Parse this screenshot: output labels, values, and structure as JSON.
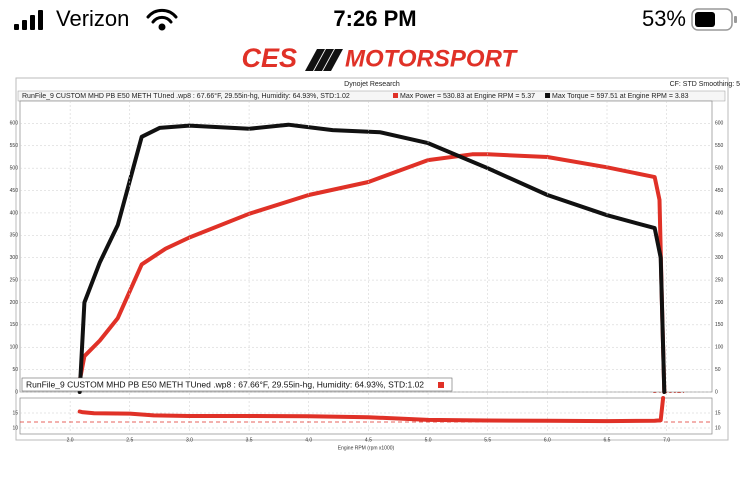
{
  "status_bar": {
    "carrier": "Verizon",
    "time": "7:26 PM",
    "battery": "53%"
  },
  "logo": {
    "left": "CES",
    "right": "MOTORSPORT"
  },
  "header": {
    "title": "Dynojet Research",
    "settings": "CF: STD Smoothing: 5",
    "run_info": "RunFile_9 CUSTOM MHD PB E50 METH TUned .wp8 : 67.66°F, 29.55in-hg, Humidity: 64.93%, STD:1.02"
  },
  "brand": "DYNOJET",
  "chart_data": [
    {
      "type": "line",
      "xlim": [
        1.58,
        7.38
      ],
      "ylim": [
        0,
        650
      ],
      "yticks": [
        0,
        50,
        100,
        150,
        200,
        250,
        300,
        350,
        400,
        450,
        500,
        550,
        600
      ],
      "grid": true,
      "legend": "RunFile_9 CUSTOM MHD PB E50 METH TUned .wp8 : 67.66°F, 29.55in-hg, Humidity: 64.93%, STD:1.02",
      "series": [
        {
          "name": "Max Power = 530.83 at Engine RPM = 5.37",
          "color": "#e03127",
          "x": [
            2.08,
            2.12,
            2.25,
            2.4,
            2.6,
            2.8,
            3.0,
            3.5,
            4.0,
            4.5,
            5.0,
            5.37,
            5.5,
            6.0,
            6.5,
            6.9,
            6.94,
            6.96,
            6.98
          ],
          "values": [
            25,
            80,
            115,
            165,
            285,
            320,
            345,
            398,
            440,
            469,
            518,
            531,
            531,
            525,
            502,
            480,
            429,
            200,
            0
          ]
        },
        {
          "name": "Max Torque = 597.51 at Engine RPM = 3.83",
          "color": "#111111",
          "x": [
            2.08,
            2.12,
            2.25,
            2.4,
            2.6,
            2.75,
            3.0,
            3.5,
            3.83,
            4.2,
            4.6,
            5.0,
            5.5,
            6.0,
            6.5,
            6.9,
            6.95,
            6.98
          ],
          "values": [
            0,
            200,
            290,
            373,
            570,
            590,
            595,
            588,
            597,
            585,
            580,
            556,
            500,
            440,
            395,
            366,
            300,
            0
          ]
        }
      ]
    },
    {
      "type": "line",
      "xlabel": "Engine RPM (rpm x1000)",
      "xlim": [
        1.58,
        7.38
      ],
      "xticks": [
        {
          "value": 2,
          "label": "2.0"
        },
        {
          "value": 2.5,
          "label": "2.5"
        },
        {
          "value": 3,
          "label": "3.0"
        },
        {
          "value": 3.5,
          "label": "3.5"
        },
        {
          "value": 4,
          "label": "4.0"
        },
        {
          "value": 4.5,
          "label": "4.5"
        },
        {
          "value": 5,
          "label": "5.0"
        },
        {
          "value": 5.5,
          "label": "5.5"
        },
        {
          "value": 6,
          "label": "6.0"
        },
        {
          "value": 6.5,
          "label": "6.5"
        },
        {
          "value": 7,
          "label": "7.0"
        }
      ],
      "ylim": [
        8,
        20
      ],
      "yticks": [
        10,
        15
      ],
      "target": 12,
      "grid": true,
      "series": [
        {
          "name": "RunFile_9 CUSTOM MHD PB E50 METH TUned .wp8 : 67.66°F, 29.55in-hg, Humidity: 64.93%, STD:1.02",
          "color": "#e03127",
          "x": [
            2.08,
            2.1,
            2.2,
            2.5,
            2.7,
            3.0,
            3.5,
            4.0,
            4.5,
            5.0,
            5.5,
            6.0,
            6.5,
            6.9,
            6.95,
            6.97
          ],
          "values": [
            15.5,
            15.3,
            14.9,
            14.8,
            14.2,
            14.0,
            14.0,
            13.9,
            13.6,
            12.7,
            12.5,
            12.4,
            12.3,
            12.4,
            12.6,
            20
          ]
        }
      ]
    }
  ]
}
